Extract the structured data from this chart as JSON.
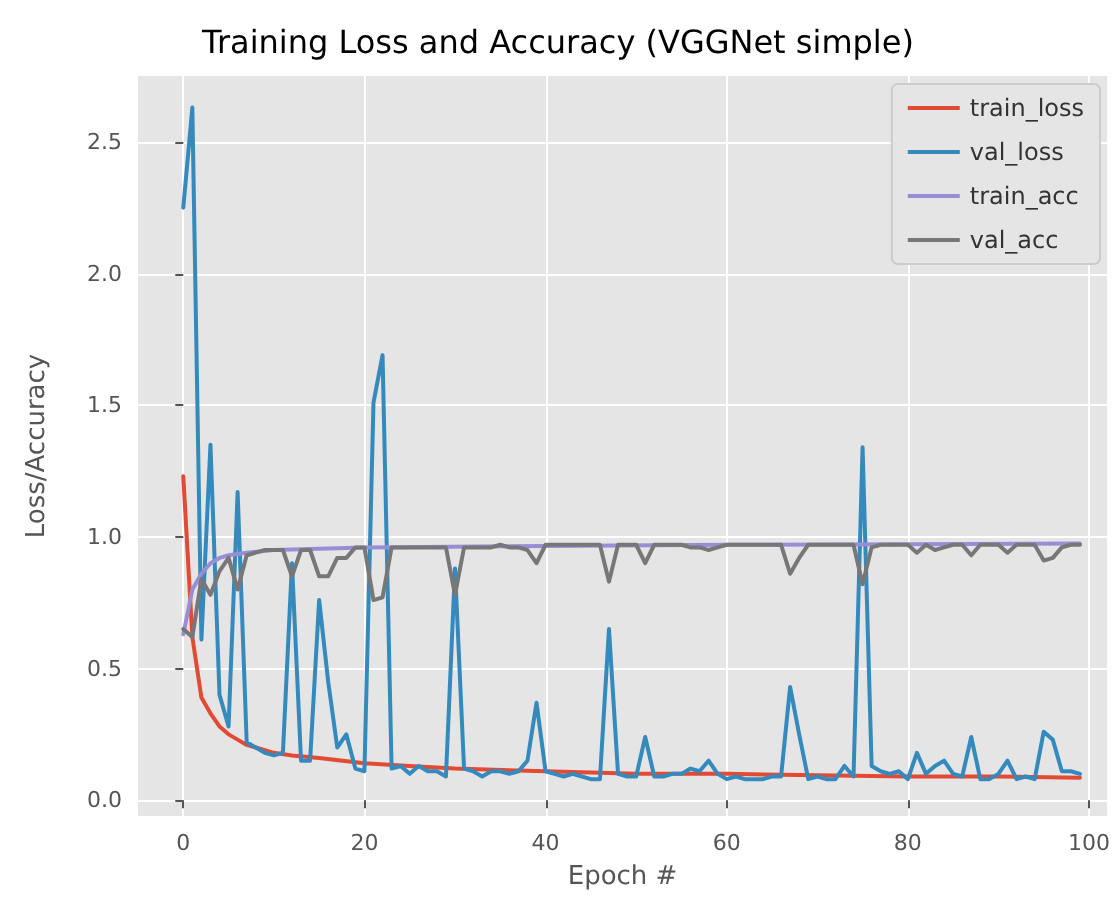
{
  "chart_data": {
    "type": "line",
    "title": "Training Loss and Accuracy (VGGNet simple)",
    "xlabel": "Epoch #",
    "ylabel": "Loss/Accuracy",
    "x": [
      0,
      1,
      2,
      3,
      4,
      5,
      6,
      7,
      8,
      9,
      10,
      11,
      12,
      13,
      14,
      15,
      16,
      17,
      18,
      19,
      20,
      21,
      22,
      23,
      24,
      25,
      26,
      27,
      28,
      29,
      30,
      31,
      32,
      33,
      34,
      35,
      36,
      37,
      38,
      39,
      40,
      41,
      42,
      43,
      44,
      45,
      46,
      47,
      48,
      49,
      50,
      51,
      52,
      53,
      54,
      55,
      56,
      57,
      58,
      59,
      60,
      61,
      62,
      63,
      64,
      65,
      66,
      67,
      68,
      69,
      70,
      71,
      72,
      73,
      74,
      75,
      76,
      77,
      78,
      79,
      80,
      81,
      82,
      83,
      84,
      85,
      86,
      87,
      88,
      89,
      90,
      91,
      92,
      93,
      94,
      95,
      96,
      97,
      98,
      99
    ],
    "series": [
      {
        "name": "train_loss",
        "color": "#e24a33",
        "x": [
          0,
          1,
          2,
          3,
          4,
          5,
          6,
          7,
          8,
          10,
          12,
          15,
          20,
          25,
          30,
          40,
          50,
          60,
          70,
          80,
          90,
          99
        ],
        "values": [
          1.23,
          0.62,
          0.39,
          0.33,
          0.28,
          0.25,
          0.23,
          0.21,
          0.2,
          0.18,
          0.17,
          0.16,
          0.14,
          0.13,
          0.12,
          0.11,
          0.1,
          0.1,
          0.095,
          0.09,
          0.09,
          0.085
        ]
      },
      {
        "name": "val_loss",
        "color": "#348abd",
        "values": [
          2.25,
          2.63,
          0.61,
          1.35,
          0.4,
          0.28,
          1.17,
          0.22,
          0.2,
          0.18,
          0.17,
          0.18,
          0.9,
          0.15,
          0.15,
          0.76,
          0.45,
          0.2,
          0.25,
          0.12,
          0.11,
          1.51,
          1.69,
          0.12,
          0.13,
          0.1,
          0.13,
          0.11,
          0.11,
          0.09,
          0.88,
          0.12,
          0.11,
          0.09,
          0.11,
          0.11,
          0.1,
          0.11,
          0.15,
          0.37,
          0.11,
          0.1,
          0.09,
          0.1,
          0.09,
          0.08,
          0.08,
          0.65,
          0.1,
          0.09,
          0.09,
          0.24,
          0.09,
          0.09,
          0.1,
          0.1,
          0.12,
          0.11,
          0.15,
          0.1,
          0.08,
          0.09,
          0.08,
          0.08,
          0.08,
          0.09,
          0.09,
          0.43,
          0.25,
          0.08,
          0.09,
          0.08,
          0.08,
          0.13,
          0.09,
          1.34,
          0.13,
          0.11,
          0.1,
          0.11,
          0.08,
          0.18,
          0.1,
          0.13,
          0.15,
          0.1,
          0.09,
          0.24,
          0.08,
          0.08,
          0.1,
          0.15,
          0.08,
          0.09,
          0.08,
          0.26,
          0.23,
          0.11,
          0.11,
          0.1
        ]
      },
      {
        "name": "train_acc",
        "color": "#988ed5",
        "x": [
          0,
          1,
          2,
          3,
          4,
          5,
          7,
          10,
          15,
          20,
          40,
          60,
          80,
          99
        ],
        "values": [
          0.63,
          0.8,
          0.86,
          0.9,
          0.92,
          0.93,
          0.94,
          0.95,
          0.955,
          0.96,
          0.965,
          0.97,
          0.972,
          0.975
        ]
      },
      {
        "name": "val_acc",
        "color": "#777777",
        "values": [
          0.65,
          0.62,
          0.84,
          0.78,
          0.87,
          0.92,
          0.8,
          0.93,
          0.94,
          0.95,
          0.95,
          0.95,
          0.85,
          0.95,
          0.95,
          0.85,
          0.85,
          0.92,
          0.92,
          0.96,
          0.96,
          0.76,
          0.77,
          0.96,
          0.96,
          0.96,
          0.96,
          0.96,
          0.96,
          0.96,
          0.78,
          0.96,
          0.96,
          0.96,
          0.96,
          0.97,
          0.96,
          0.96,
          0.95,
          0.9,
          0.97,
          0.97,
          0.97,
          0.97,
          0.97,
          0.97,
          0.97,
          0.83,
          0.97,
          0.97,
          0.97,
          0.9,
          0.97,
          0.97,
          0.97,
          0.97,
          0.96,
          0.96,
          0.95,
          0.96,
          0.97,
          0.97,
          0.97,
          0.97,
          0.97,
          0.97,
          0.97,
          0.86,
          0.92,
          0.97,
          0.97,
          0.97,
          0.97,
          0.97,
          0.97,
          0.82,
          0.96,
          0.97,
          0.97,
          0.97,
          0.97,
          0.94,
          0.97,
          0.95,
          0.96,
          0.97,
          0.97,
          0.93,
          0.97,
          0.97,
          0.97,
          0.94,
          0.97,
          0.97,
          0.97,
          0.91,
          0.92,
          0.96,
          0.97,
          0.97
        ]
      }
    ],
    "xlim": [
      -5,
      102
    ],
    "xticks": [
      0,
      20,
      40,
      60,
      80,
      100
    ],
    "ylim": [
      -0.06,
      2.75
    ],
    "yticks": [
      {
        "value": 0,
        "label": "0.0"
      },
      0.5,
      {
        "value": 1,
        "label": "1.0"
      },
      1.5,
      {
        "value": 2,
        "label": "2.0"
      },
      2.5
    ],
    "grid": true,
    "legend": "top right",
    "line_style": "solid"
  }
}
